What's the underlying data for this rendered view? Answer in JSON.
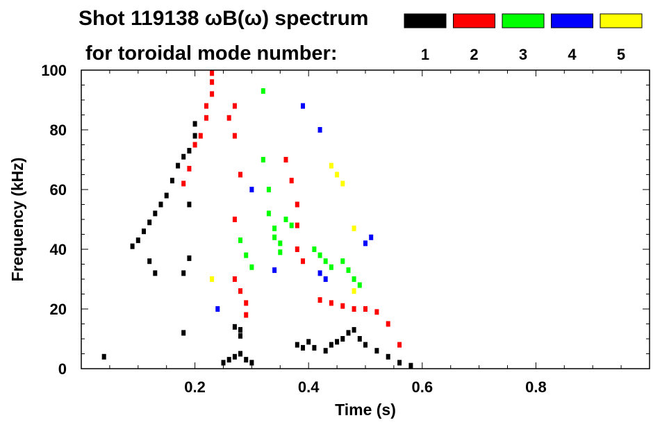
{
  "chart_data": {
    "type": "scatter",
    "title": "Shot 119138 ωB(ω) spectrum",
    "subtitle": "for toroidal mode number:",
    "xlabel": "Time (s)",
    "ylabel": "Frequency (kHz)",
    "xlim": [
      0.0,
      1.0
    ],
    "ylim": [
      0,
      100
    ],
    "x_ticks": [
      "0.2",
      "0.4",
      "0.6",
      "0.8"
    ],
    "y_ticks": [
      "0",
      "20",
      "40",
      "60",
      "80",
      "100"
    ],
    "grid": false,
    "legend": {
      "placement": "top-right",
      "entries": [
        {
          "label": "1",
          "color": "#000000"
        },
        {
          "label": "2",
          "color": "#ff0000"
        },
        {
          "label": "3",
          "color": "#00ff00"
        },
        {
          "label": "4",
          "color": "#0000ff"
        },
        {
          "label": "5",
          "color": "#ffff00"
        }
      ]
    },
    "series": [
      {
        "name": "1",
        "color": "#000000",
        "points": [
          [
            0.04,
            4
          ],
          [
            0.09,
            41
          ],
          [
            0.1,
            43
          ],
          [
            0.11,
            46
          ],
          [
            0.12,
            49
          ],
          [
            0.13,
            52
          ],
          [
            0.14,
            55
          ],
          [
            0.15,
            58
          ],
          [
            0.16,
            63
          ],
          [
            0.17,
            68
          ],
          [
            0.18,
            71
          ],
          [
            0.19,
            73
          ],
          [
            0.2,
            78
          ],
          [
            0.2,
            82
          ],
          [
            0.12,
            36
          ],
          [
            0.13,
            32
          ],
          [
            0.19,
            37
          ],
          [
            0.19,
            55
          ],
          [
            0.18,
            32
          ],
          [
            0.18,
            12
          ],
          [
            0.25,
            2
          ],
          [
            0.26,
            3
          ],
          [
            0.27,
            4
          ],
          [
            0.28,
            5
          ],
          [
            0.29,
            3
          ],
          [
            0.3,
            2
          ],
          [
            0.27,
            14
          ],
          [
            0.28,
            13
          ],
          [
            0.28,
            11
          ],
          [
            0.38,
            8
          ],
          [
            0.39,
            7
          ],
          [
            0.4,
            9
          ],
          [
            0.41,
            7
          ],
          [
            0.43,
            6
          ],
          [
            0.44,
            8
          ],
          [
            0.45,
            9
          ],
          [
            0.46,
            10
          ],
          [
            0.47,
            12
          ],
          [
            0.48,
            13
          ],
          [
            0.49,
            10
          ],
          [
            0.5,
            8
          ],
          [
            0.52,
            6
          ],
          [
            0.54,
            4
          ],
          [
            0.56,
            2
          ],
          [
            0.58,
            1
          ]
        ]
      },
      {
        "name": "2",
        "color": "#ff0000",
        "points": [
          [
            0.18,
            62
          ],
          [
            0.19,
            67
          ],
          [
            0.2,
            75
          ],
          [
            0.21,
            78
          ],
          [
            0.22,
            84
          ],
          [
            0.22,
            88
          ],
          [
            0.23,
            92
          ],
          [
            0.23,
            96
          ],
          [
            0.23,
            99
          ],
          [
            0.26,
            84
          ],
          [
            0.27,
            88
          ],
          [
            0.27,
            78
          ],
          [
            0.28,
            65
          ],
          [
            0.27,
            50
          ],
          [
            0.27,
            30
          ],
          [
            0.28,
            26
          ],
          [
            0.29,
            22
          ],
          [
            0.29,
            18
          ],
          [
            0.36,
            70
          ],
          [
            0.37,
            63
          ],
          [
            0.38,
            55
          ],
          [
            0.38,
            48
          ],
          [
            0.38,
            40
          ],
          [
            0.39,
            36
          ],
          [
            0.42,
            23
          ],
          [
            0.44,
            22
          ],
          [
            0.46,
            21
          ],
          [
            0.48,
            20
          ],
          [
            0.5,
            20
          ],
          [
            0.52,
            19
          ],
          [
            0.54,
            15
          ],
          [
            0.56,
            8
          ]
        ]
      },
      {
        "name": "3",
        "color": "#00ff00",
        "points": [
          [
            0.32,
            93
          ],
          [
            0.32,
            70
          ],
          [
            0.33,
            60
          ],
          [
            0.33,
            52
          ],
          [
            0.34,
            47
          ],
          [
            0.34,
            44
          ],
          [
            0.35,
            42
          ],
          [
            0.35,
            39
          ],
          [
            0.28,
            43
          ],
          [
            0.29,
            38
          ],
          [
            0.3,
            34
          ],
          [
            0.36,
            50
          ],
          [
            0.37,
            48
          ],
          [
            0.41,
            40
          ],
          [
            0.42,
            38
          ],
          [
            0.43,
            36
          ],
          [
            0.44,
            34
          ],
          [
            0.46,
            36
          ],
          [
            0.47,
            33
          ],
          [
            0.48,
            30
          ],
          [
            0.49,
            28
          ]
        ]
      },
      {
        "name": "4",
        "color": "#0000ff",
        "points": [
          [
            0.24,
            20
          ],
          [
            0.39,
            88
          ],
          [
            0.42,
            80
          ],
          [
            0.42,
            32
          ],
          [
            0.43,
            30
          ],
          [
            0.5,
            42
          ],
          [
            0.51,
            44
          ],
          [
            0.3,
            60
          ],
          [
            0.34,
            33
          ]
        ]
      },
      {
        "name": "5",
        "color": "#ffff00",
        "points": [
          [
            0.23,
            30
          ],
          [
            0.44,
            68
          ],
          [
            0.45,
            65
          ],
          [
            0.46,
            62
          ],
          [
            0.48,
            47
          ],
          [
            0.48,
            26
          ]
        ]
      }
    ]
  }
}
